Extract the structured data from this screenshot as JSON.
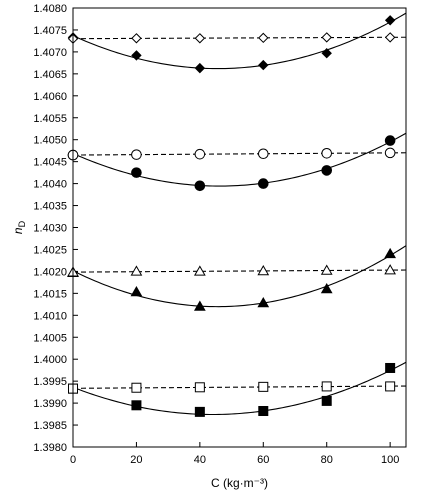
{
  "chart_data": {
    "type": "scatter",
    "xlabel": "C (kg·m⁻³)",
    "ylabel_main": "n",
    "ylabel_sub": "D",
    "xlim": [
      0,
      105
    ],
    "ylim": [
      1.398,
      1.408
    ],
    "xticks": [
      0,
      20,
      40,
      60,
      80,
      100
    ],
    "xtick_labels": [
      "0",
      "20",
      "40",
      "60",
      "80",
      "100"
    ],
    "yticks": [
      1.398,
      1.3985,
      1.399,
      1.3995,
      1.4,
      1.4005,
      1.401,
      1.4015,
      1.402,
      1.4025,
      1.403,
      1.4035,
      1.404,
      1.4045,
      1.405,
      1.4055,
      1.406,
      1.4065,
      1.407,
      1.4075,
      1.408
    ],
    "ytick_labels": [
      "1.3980",
      "1.3985",
      "1.3990",
      "1.3995",
      "1.4000",
      "1.4005",
      "1.4010",
      "1.4015",
      "1.4020",
      "1.4025",
      "1.4030",
      "1.4035",
      "1.4040",
      "1.4045",
      "1.4050",
      "1.4055",
      "1.4060",
      "1.4065",
      "1.4070",
      "1.4075",
      "1.4080"
    ],
    "grid": false,
    "series": [
      {
        "marker": "diamond",
        "filled": true,
        "fit": "quadratic",
        "line": "solid",
        "x": [
          0,
          20,
          40,
          60,
          80,
          100
        ],
        "y": [
          1.40733,
          1.40692,
          1.40663,
          1.4067,
          1.40697,
          1.40772
        ]
      },
      {
        "marker": "diamond",
        "filled": false,
        "fit": "linear",
        "line": "dashed",
        "x": [
          0,
          20,
          40,
          60,
          80,
          100
        ],
        "y": [
          1.4073,
          1.40731,
          1.40731,
          1.40732,
          1.40733,
          1.40733
        ]
      },
      {
        "marker": "circle",
        "filled": true,
        "fit": "quadratic",
        "line": "solid",
        "x": [
          0,
          20,
          40,
          60,
          80,
          100
        ],
        "y": [
          1.40465,
          1.40425,
          1.40395,
          1.404,
          1.4043,
          1.40498
        ]
      },
      {
        "marker": "circle",
        "filled": false,
        "fit": "linear",
        "line": "dashed",
        "x": [
          0,
          20,
          40,
          60,
          80,
          100
        ],
        "y": [
          1.40465,
          1.40466,
          1.40467,
          1.40468,
          1.40469,
          1.4047
        ]
      },
      {
        "marker": "triangle",
        "filled": true,
        "fit": "quadratic",
        "line": "solid",
        "x": [
          0,
          20,
          40,
          60,
          80,
          100
        ],
        "y": [
          1.40197,
          1.40153,
          1.4012,
          1.40128,
          1.4016,
          1.4024
        ]
      },
      {
        "marker": "triangle",
        "filled": false,
        "fit": "linear",
        "line": "dashed",
        "x": [
          0,
          20,
          40,
          60,
          80,
          100
        ],
        "y": [
          1.40198,
          1.402,
          1.402,
          1.40201,
          1.40202,
          1.40203
        ]
      },
      {
        "marker": "square",
        "filled": true,
        "fit": "quadratic",
        "line": "solid",
        "x": [
          0,
          20,
          40,
          60,
          80,
          100
        ],
        "y": [
          1.39933,
          1.39895,
          1.3988,
          1.39882,
          1.39905,
          1.3998
        ]
      },
      {
        "marker": "square",
        "filled": false,
        "fit": "linear",
        "line": "dashed",
        "x": [
          0,
          20,
          40,
          60,
          80,
          100
        ],
        "y": [
          1.39933,
          1.39935,
          1.39936,
          1.39937,
          1.39938,
          1.39938
        ]
      }
    ]
  }
}
